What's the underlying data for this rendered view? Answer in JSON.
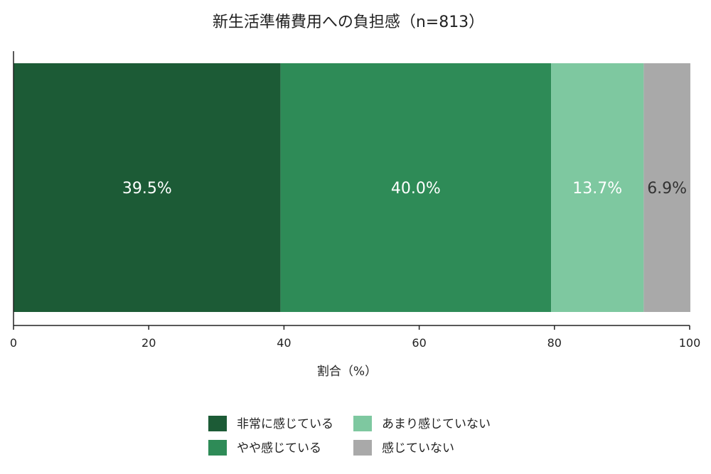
{
  "chart_data": {
    "type": "bar",
    "orientation": "horizontal",
    "stacked": true,
    "title": "新生活準備費用への負担感（n=813）",
    "xlabel": "割合（%）",
    "ylabel": "",
    "xlim": [
      0,
      100
    ],
    "x_ticks": [
      0,
      20,
      40,
      60,
      80,
      100
    ],
    "grid": false,
    "legend_position": "bottom",
    "series": [
      {
        "name": "非常に感じている",
        "value": 39.5,
        "label": "39.5%",
        "color": "#1c5b36",
        "label_color": "#ffffff"
      },
      {
        "name": "やや感じている",
        "value": 40.0,
        "label": "40.0%",
        "color": "#2e8b57",
        "label_color": "#ffffff"
      },
      {
        "name": "あまり感じていない",
        "value": 13.7,
        "label": "13.7%",
        "color": "#7ec8a0",
        "label_color": "#ffffff"
      },
      {
        "name": "感じていない",
        "value": 6.9,
        "label": "6.9%",
        "color": "#a9a9a9",
        "label_color": "#333333"
      }
    ]
  }
}
